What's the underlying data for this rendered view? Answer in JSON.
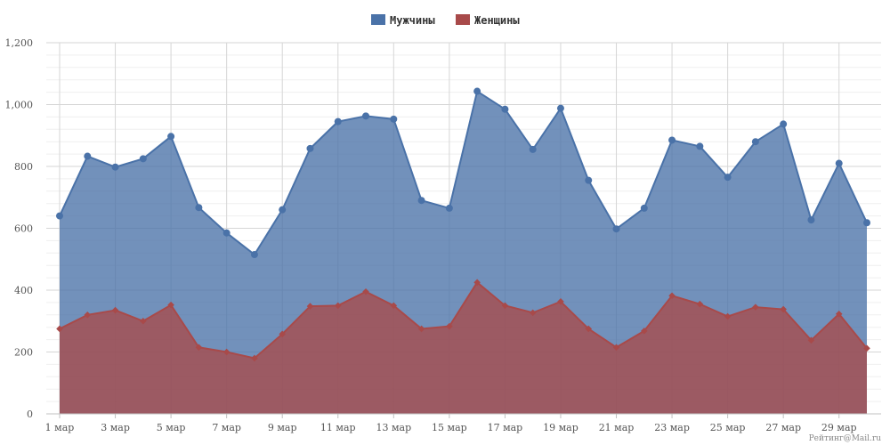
{
  "chart_data": {
    "type": "area",
    "categories": [
      "1 мар",
      "2 мар",
      "3 мар",
      "4 мар",
      "5 мар",
      "6 мар",
      "7 мар",
      "8 мар",
      "9 мар",
      "10 мар",
      "11 мар",
      "12 мар",
      "13 мар",
      "14 мар",
      "15 мар",
      "16 мар",
      "17 мар",
      "18 мар",
      "19 мар",
      "20 мар",
      "21 мар",
      "22 мар",
      "23 мар",
      "24 мар",
      "25 мар",
      "26 мар",
      "27 мар",
      "28 мар",
      "29 мар",
      "30 мар"
    ],
    "x_tick_labels": [
      "1 мар",
      "3 мар",
      "5 мар",
      "7 мар",
      "9 мар",
      "11 мар",
      "13 мар",
      "15 мар",
      "17 мар",
      "19 мар",
      "21 мар",
      "23 мар",
      "25 мар",
      "27 мар",
      "29 мар"
    ],
    "y_tick_labels": [
      "0",
      "200",
      "400",
      "600",
      "800",
      "1,000",
      "1,200"
    ],
    "ylim": [
      0,
      1200
    ],
    "grid": true,
    "legend_position": "top-center",
    "series": [
      {
        "name": "Мужчины",
        "color": "#4a72a8",
        "values": [
          640,
          833,
          798,
          825,
          897,
          667,
          585,
          515,
          660,
          858,
          945,
          963,
          953,
          690,
          665,
          1043,
          985,
          855,
          988,
          755,
          598,
          665,
          885,
          865,
          765,
          880,
          937,
          627,
          810,
          618
        ]
      },
      {
        "name": "Женщины",
        "color": "#a84a4a",
        "values": [
          275,
          320,
          335,
          300,
          352,
          215,
          200,
          180,
          258,
          348,
          350,
          395,
          350,
          275,
          283,
          425,
          350,
          327,
          363,
          275,
          215,
          268,
          382,
          355,
          315,
          345,
          338,
          238,
          323,
          212
        ]
      }
    ]
  },
  "credit": "Рейтинг@Mail.ru"
}
